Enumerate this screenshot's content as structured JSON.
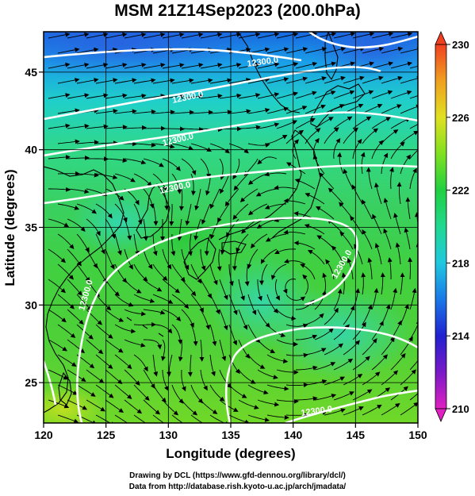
{
  "title": "MSM 21Z14Sep2023 (200.0hPa)",
  "xlabel": "Longitude (degrees)",
  "ylabel": "Latitude  (degrees)",
  "footer": {
    "line1": "Drawing by DCL (https://www.gfd-dennou.org/library/dcl/)",
    "line2": "Data from http://database.rish.kyoto-u.ac.jp/arch/jmadata/"
  },
  "chart_data": {
    "type": "heatmap",
    "title": "MSM 21Z14Sep2023 (200.0hPa)",
    "xlabel": "Longitude (degrees)",
    "ylabel": "Latitude  (degrees)",
    "xlim": [
      120,
      150
    ],
    "ylim": [
      22.4,
      47.6
    ],
    "xticks": [
      120,
      125,
      130,
      135,
      140,
      145,
      150
    ],
    "yticks": [
      25,
      30,
      35,
      40,
      45
    ],
    "grid": true,
    "colorbar": {
      "min": 210,
      "max": 230,
      "ticks": [
        210,
        214,
        218,
        222,
        226,
        230
      ],
      "colors": [
        "#e020c0",
        "#7a18c8",
        "#2020d0",
        "#1a78e8",
        "#20c8e0",
        "#20d890",
        "#20d040",
        "#80e020",
        "#e0e020",
        "#f0a020",
        "#f04020"
      ]
    },
    "contour_labels": [
      "12300.0",
      "12300.0",
      "12300.0",
      "12300.0",
      "12300.0",
      "12300.0",
      "12300.0"
    ]
  }
}
